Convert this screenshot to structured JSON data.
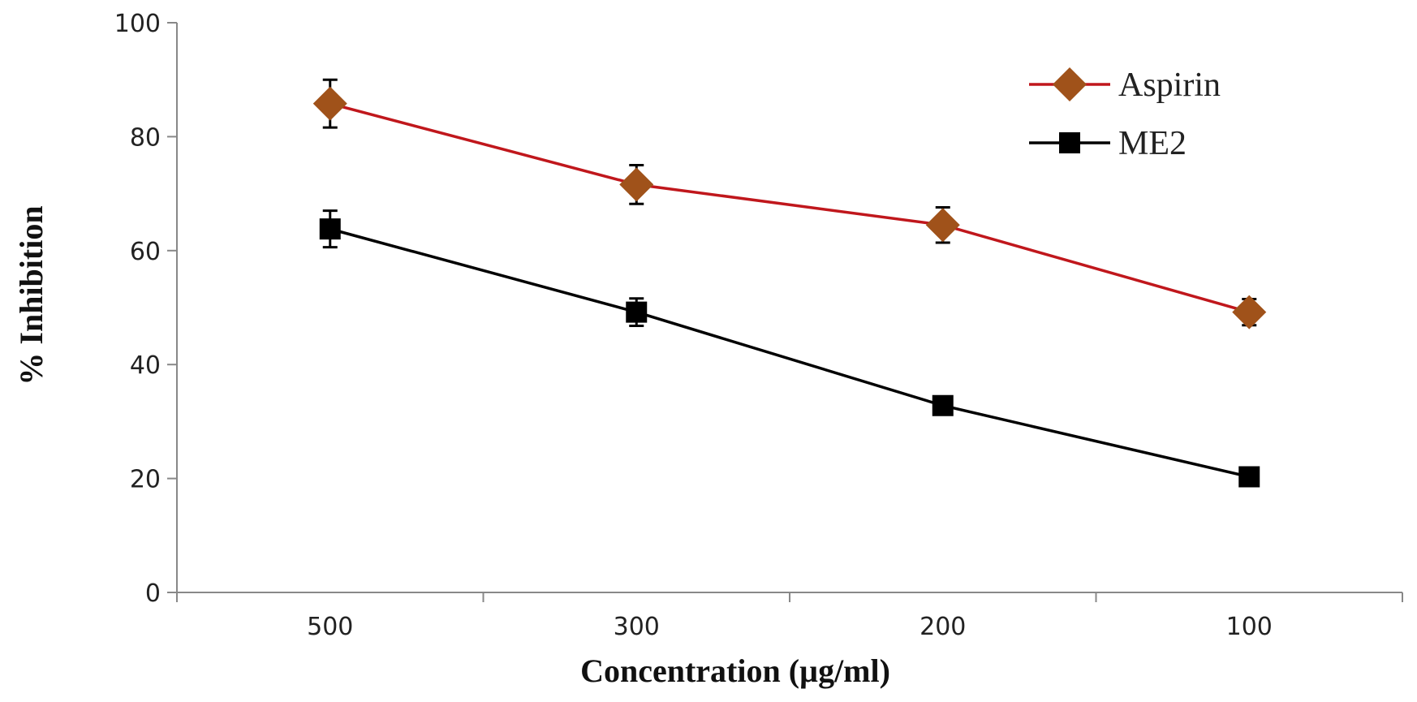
{
  "chart_data": {
    "type": "line",
    "title": "",
    "xlabel": "Concentration (µg/ml)",
    "ylabel": "% Inhibition",
    "categories": [
      "500",
      "300",
      "200",
      "100"
    ],
    "ylim": [
      0,
      100
    ],
    "yticks": [
      "0",
      "20",
      "40",
      "60",
      "80",
      "100"
    ],
    "grid": false,
    "legend_position": "top-right",
    "series": [
      {
        "name": "Aspirin",
        "marker": "diamond",
        "line_color": "#c0171c",
        "marker_color": "#a0521a",
        "values": [
          85.8,
          71.6,
          64.5,
          49.2
        ],
        "errors": [
          4.2,
          3.4,
          3.1,
          2.3
        ]
      },
      {
        "name": "ME2",
        "marker": "square",
        "line_color": "#000000",
        "marker_color": "#000000",
        "values": [
          63.8,
          49.2,
          32.8,
          20.3
        ],
        "errors": [
          3.2,
          2.4,
          1.2,
          0.8
        ]
      }
    ]
  }
}
